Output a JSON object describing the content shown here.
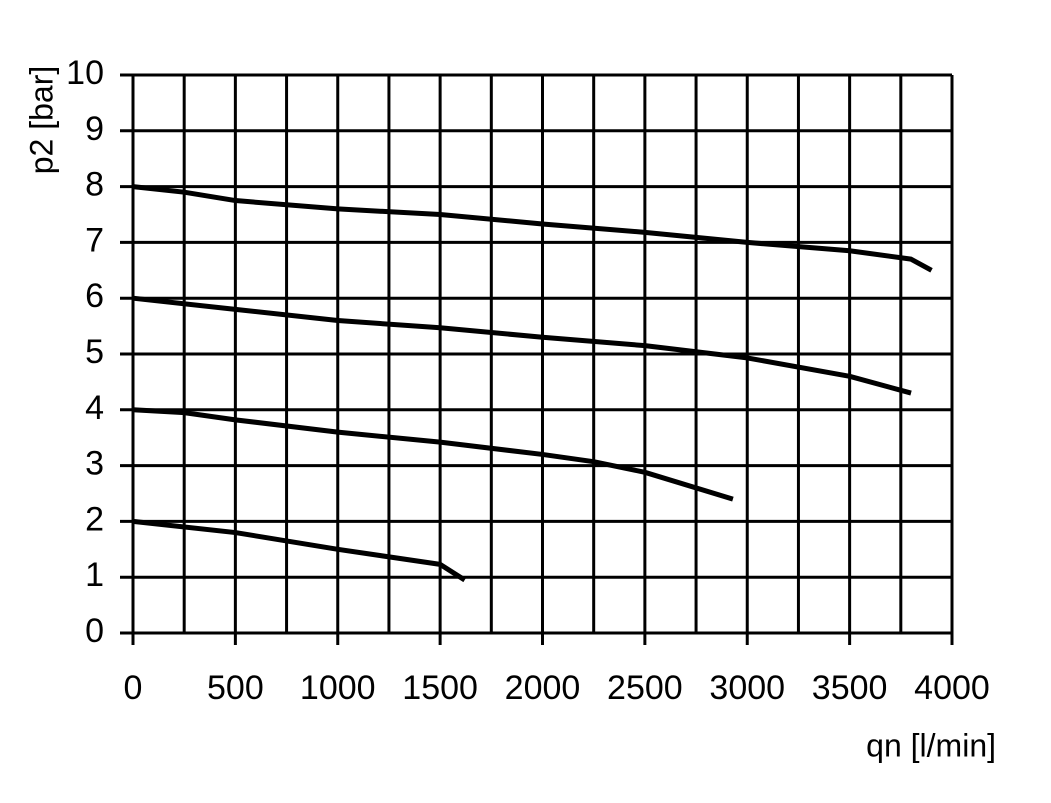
{
  "chart_data": {
    "type": "line",
    "x_label": "qn [l/min]",
    "y_label": "p2 [bar]",
    "xlim": [
      0,
      4000
    ],
    "ylim": [
      0,
      10
    ],
    "xticks": [
      0,
      500,
      1000,
      1500,
      2000,
      2500,
      3000,
      3500,
      4000
    ],
    "xminorticks": [
      250,
      750,
      1250,
      1750,
      2250,
      2750,
      3250,
      3750
    ],
    "yticks": [
      0,
      1,
      2,
      3,
      4,
      5,
      6,
      7,
      8,
      9,
      10
    ],
    "grid": true,
    "series": [
      {
        "color": "#000000",
        "x": [
          0,
          250,
          500,
          1000,
          1500,
          2000,
          2500,
          3000,
          3500,
          3800,
          3900
        ],
        "values": [
          8,
          7.9,
          7.75,
          7.6,
          7.5,
          7.33,
          7.18,
          7.0,
          6.85,
          6.7,
          6.5
        ]
      },
      {
        "color": "#000000",
        "x": [
          0,
          500,
          1000,
          1500,
          2000,
          2500,
          3000,
          3500,
          3800
        ],
        "values": [
          6,
          5.8,
          5.6,
          5.47,
          5.3,
          5.15,
          4.93,
          4.6,
          4.3
        ]
      },
      {
        "color": "#000000",
        "x": [
          0,
          250,
          500,
          1000,
          1500,
          2000,
          2250,
          2500,
          2930
        ],
        "values": [
          4,
          3.95,
          3.82,
          3.6,
          3.42,
          3.2,
          3.07,
          2.88,
          2.4
        ]
      },
      {
        "color": "#000000",
        "x": [
          0,
          500,
          1000,
          1500,
          1620
        ],
        "values": [
          2,
          1.8,
          1.5,
          1.23,
          0.95
        ]
      }
    ]
  }
}
